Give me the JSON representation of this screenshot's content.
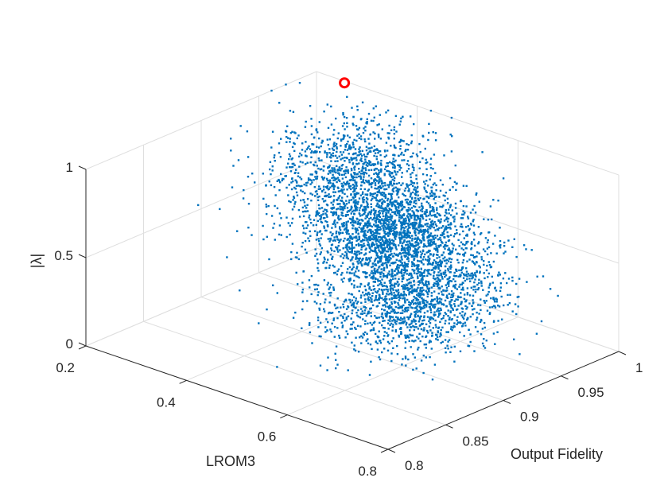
{
  "chart_data": {
    "type": "scatter3d",
    "title": "",
    "xlabel": "LROM3",
    "ylabel": "Output Fidelity",
    "zlabel": "|λ|",
    "xlim": [
      0.2,
      0.8
    ],
    "ylim": [
      0.8,
      1.0
    ],
    "zlim": [
      0,
      1
    ],
    "xticks": [
      0.2,
      0.4,
      0.6,
      0.8
    ],
    "xtick_labels": [
      "0.2",
      "0.4",
      "0.6",
      "0.8"
    ],
    "yticks": [
      0.8,
      0.85,
      0.9,
      0.95,
      1.0
    ],
    "ytick_labels": [
      "0.8",
      "0.85",
      "0.9",
      "0.95",
      "1"
    ],
    "zticks": [
      0,
      0.5,
      1
    ],
    "ztick_labels": [
      "0",
      "0.5",
      "1"
    ],
    "grid": true,
    "marker_color": "#0072BD",
    "highlight_color": "#FF0000",
    "highlight_point": {
      "x": 0.26,
      "y": 0.998,
      "z": 1.0
    },
    "series": [
      {
        "point_count": 4500,
        "clusters": [
          {
            "x": 0.5,
            "y": 0.935,
            "z": 0.55,
            "sx": 0.07,
            "sy": 0.02,
            "sz": 0.12,
            "weight": 0.42
          },
          {
            "x": 0.62,
            "y": 0.9,
            "z": 0.4,
            "sx": 0.06,
            "sy": 0.03,
            "sz": 0.12,
            "weight": 0.33
          },
          {
            "x": 0.38,
            "y": 0.955,
            "z": 0.72,
            "sx": 0.07,
            "sy": 0.025,
            "sz": 0.15,
            "weight": 0.25
          }
        ]
      }
    ]
  }
}
